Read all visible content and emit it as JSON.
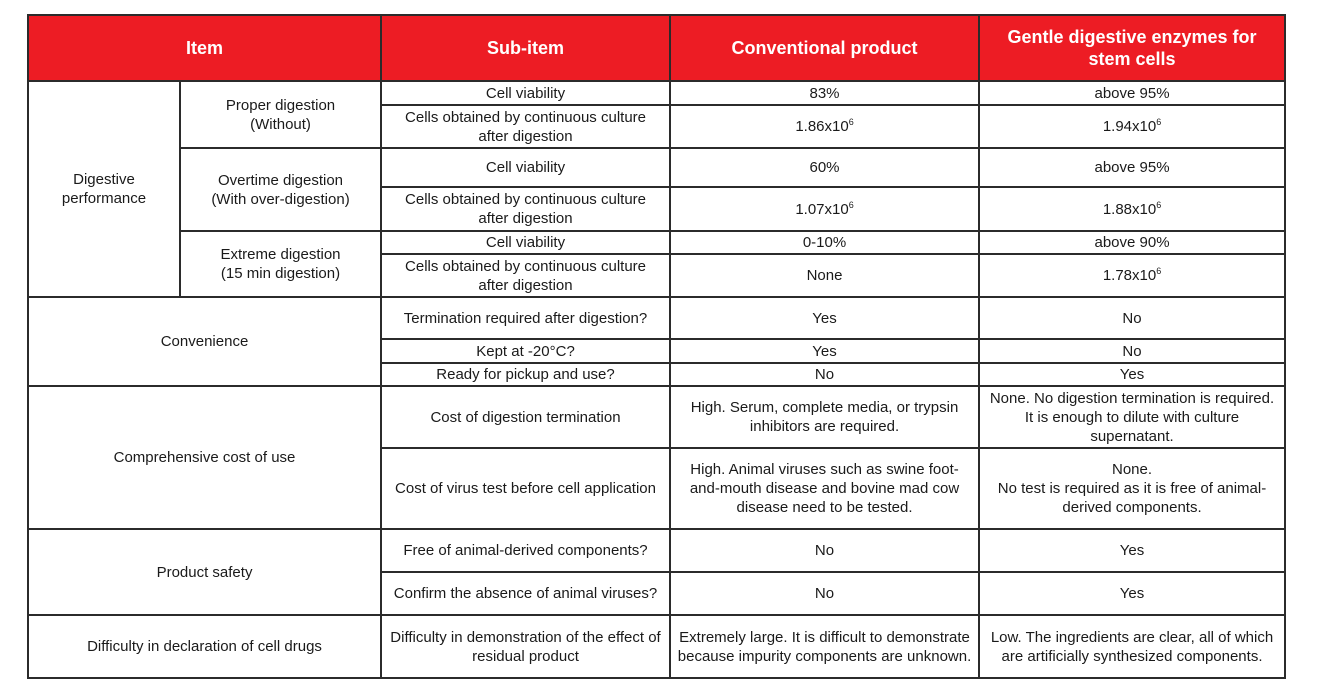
{
  "header": {
    "item": "Item",
    "sub_item": "Sub-item",
    "conventional": "Conventional product",
    "gentle": "Gentle digestive enzymes for stem cells"
  },
  "digestive": {
    "label": "Digestive\nperformance",
    "proper": {
      "label": "Proper digestion\n(Without)",
      "viability": {
        "sub": "Cell viability",
        "conv": "83%",
        "gentle": "above 95%"
      },
      "cells": {
        "sub": "Cells obtained by continuous culture after digestion",
        "conv_base": "1.86x10",
        "conv_exp": "6",
        "gentle_base": "1.94x10",
        "gentle_exp": "6"
      }
    },
    "overtime": {
      "label": "Overtime digestion\n(With over-digestion)",
      "viability": {
        "sub": "Cell viability",
        "conv": "60%",
        "gentle": "above 95%"
      },
      "cells": {
        "sub": "Cells obtained by continuous culture after digestion",
        "conv_base": "1.07x10",
        "conv_exp": "6",
        "gentle_base": "1.88x10",
        "gentle_exp": "6"
      }
    },
    "extreme": {
      "label": "Extreme digestion\n(15 min digestion)",
      "viability": {
        "sub": "Cell viability",
        "conv": "0-10%",
        "gentle": "above 90%"
      },
      "cells": {
        "sub": "Cells obtained by continuous culture after digestion",
        "conv": "None",
        "gentle_base": "1.78x10",
        "gentle_exp": "6"
      }
    }
  },
  "convenience": {
    "label": "Convenience",
    "rows": [
      {
        "sub": "Termination required after digestion?",
        "conv": "Yes",
        "gentle": "No"
      },
      {
        "sub": "Kept at -20°C?",
        "conv": "Yes",
        "gentle": "No"
      },
      {
        "sub": "Ready for pickup and use?",
        "conv": "No",
        "gentle": "Yes"
      }
    ]
  },
  "cost": {
    "label": "Comprehensive cost of use",
    "rows": [
      {
        "sub": "Cost of digestion termination",
        "conv": "High. Serum, complete media, or trypsin inhibitors are required.",
        "gentle": "None. No digestion termination is required. It is enough to dilute with culture supernatant."
      },
      {
        "sub": "Cost of virus test before cell application",
        "conv": "High. Animal viruses such as swine foot-and-mouth disease and bovine mad cow disease need to be tested.",
        "gentle": "None.\nNo test is required as it is free of animal-derived components."
      }
    ]
  },
  "safety": {
    "label": "Product safety",
    "rows": [
      {
        "sub": "Free of animal-derived components?",
        "conv": "No",
        "gentle": "Yes"
      },
      {
        "sub": "Confirm the absence of animal viruses?",
        "conv": "No",
        "gentle": "Yes"
      }
    ]
  },
  "declaration": {
    "label": "Difficulty in declaration of cell drugs",
    "rows": [
      {
        "sub": "Difficulty in demonstration of the effect of residual product",
        "conv": "Extremely large. It is difficult to demonstrate because impurity components are unknown.",
        "gentle": "Low. The ingredients are clear, all of which are artificially synthesized components."
      }
    ]
  },
  "colors": {
    "header": "#ed1c24",
    "border": "#2b2b2b"
  }
}
